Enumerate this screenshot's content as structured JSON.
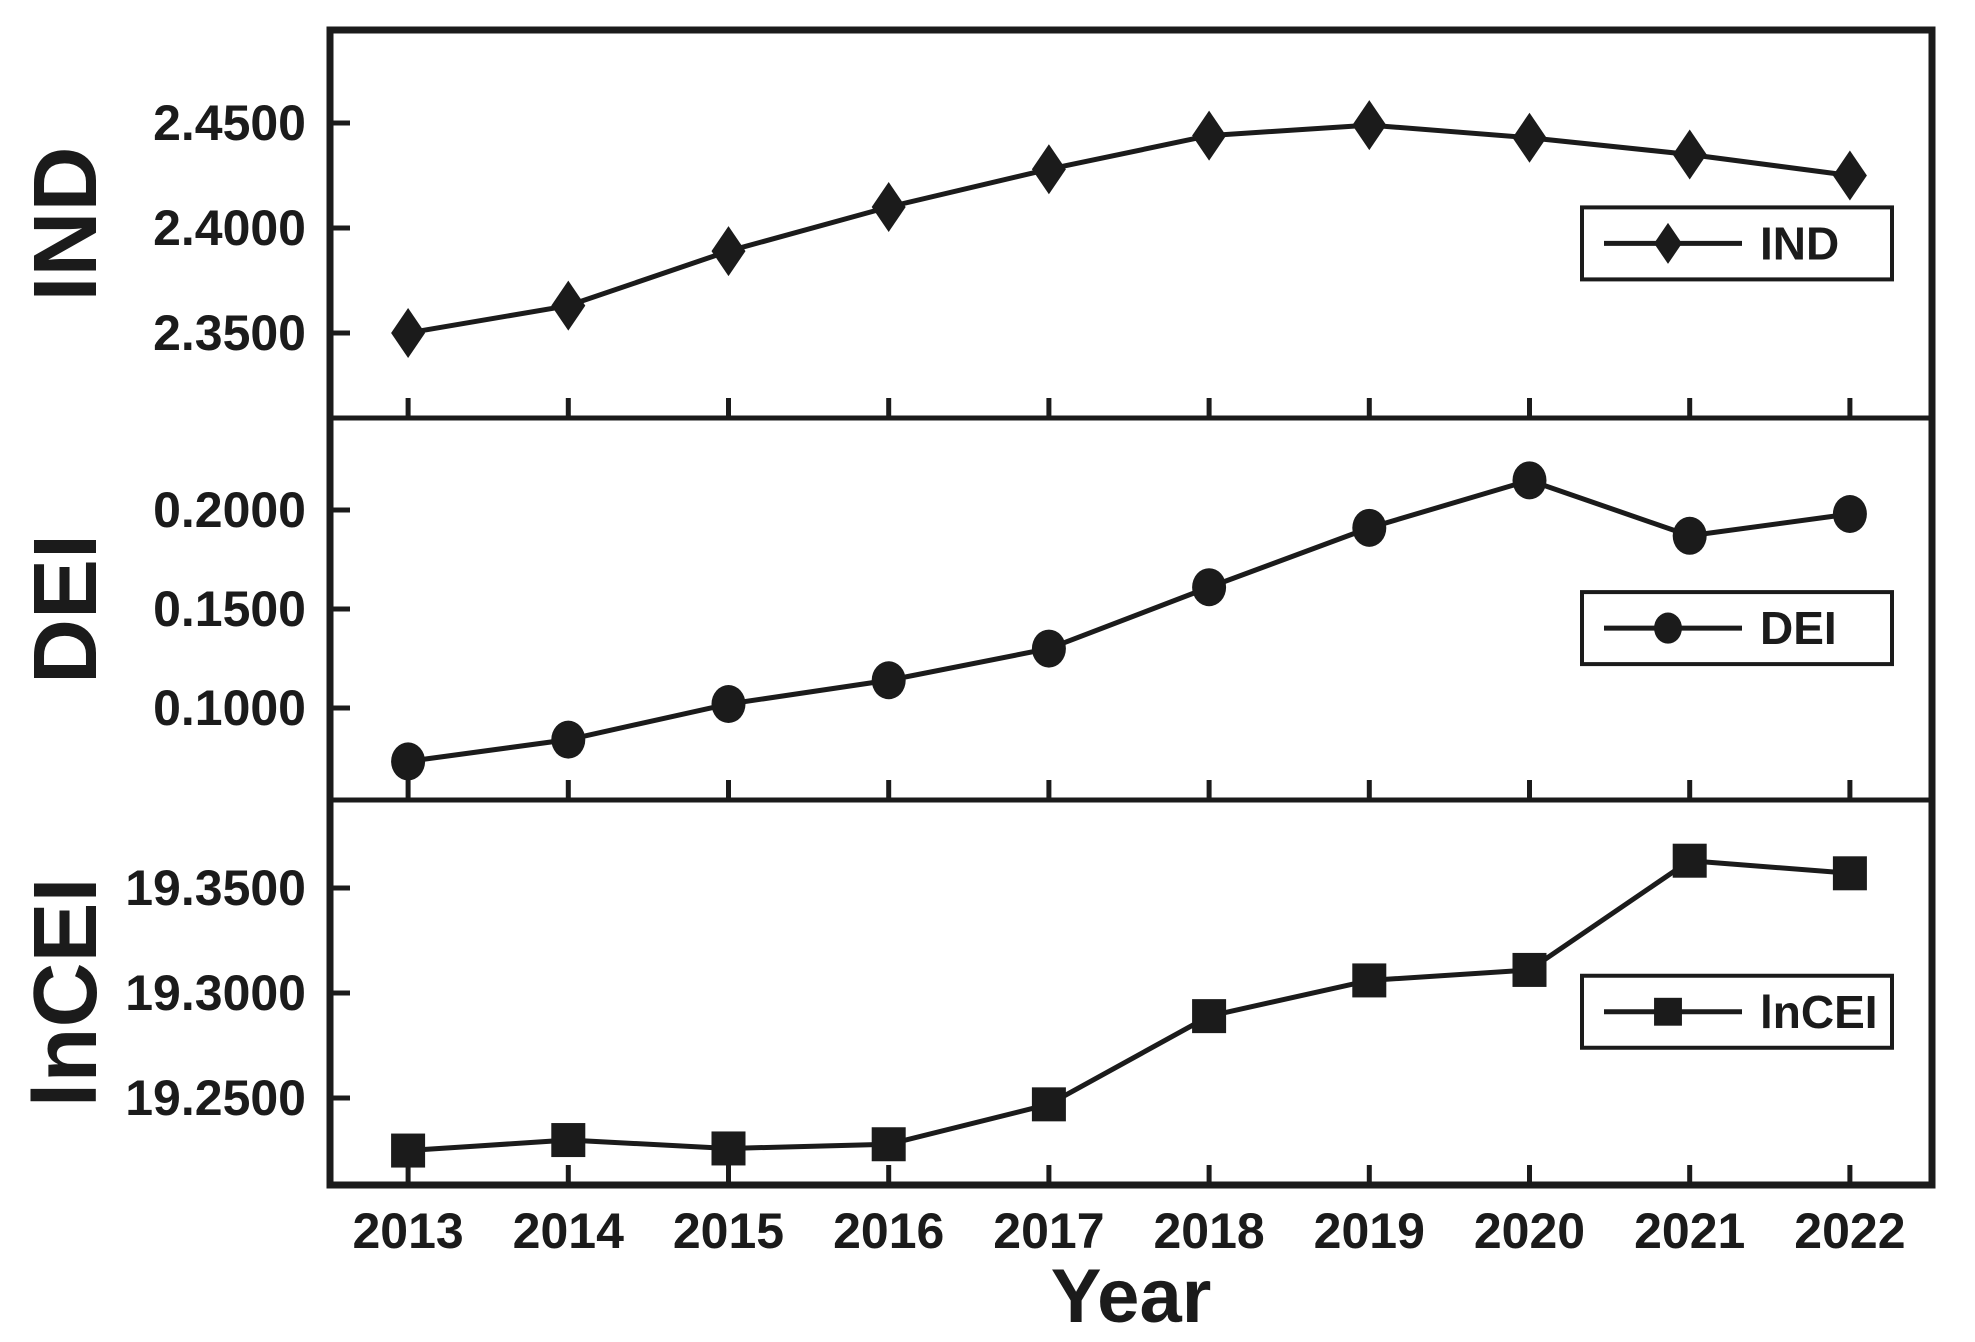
{
  "figure": {
    "background": "#ffffff",
    "ink_color": "#1b1b1b",
    "x_axis_title": "Year",
    "x_tick_labels": [
      "2013",
      "2014",
      "2015",
      "2016",
      "2017",
      "2018",
      "2019",
      "2020",
      "2021",
      "2022"
    ]
  },
  "chart_data": [
    {
      "type": "line",
      "title": "IND",
      "ylabel": "IND",
      "legend_label": "IND",
      "marker": "diamond",
      "grid": false,
      "legend_position": "lower right inside",
      "x": [
        2013,
        2014,
        2015,
        2016,
        2017,
        2018,
        2019,
        2020,
        2021,
        2022
      ],
      "values": [
        2.35,
        2.363,
        2.389,
        2.41,
        2.428,
        2.444,
        2.449,
        2.443,
        2.435,
        2.425
      ],
      "yticks": [
        {
          "value": 2.35,
          "label": "2.3500"
        },
        {
          "value": 2.4,
          "label": "2.4000"
        },
        {
          "value": 2.45,
          "label": "2.4500"
        }
      ],
      "ylim": [
        2.3095,
        2.4943
      ]
    },
    {
      "type": "line",
      "title": "DEI",
      "ylabel": "DEI",
      "legend_label": "DEI",
      "marker": "circle",
      "grid": false,
      "legend_position": "lower right inside",
      "x": [
        2013,
        2014,
        2015,
        2016,
        2017,
        2018,
        2019,
        2020,
        2021,
        2022
      ],
      "values": [
        0.073,
        0.084,
        0.102,
        0.114,
        0.13,
        0.161,
        0.191,
        0.215,
        0.187,
        0.198
      ],
      "yticks": [
        {
          "value": 0.1,
          "label": "0.1000"
        },
        {
          "value": 0.15,
          "label": "0.1500"
        },
        {
          "value": 0.2,
          "label": "0.2000"
        }
      ],
      "ylim": [
        0.0535,
        0.2465
      ]
    },
    {
      "type": "line",
      "title": "lnCEI",
      "ylabel": "lnCEI",
      "legend_label": "lnCEI",
      "marker": "square",
      "grid": false,
      "legend_position": "lower right inside",
      "x": [
        2013,
        2014,
        2015,
        2016,
        2017,
        2018,
        2019,
        2020,
        2021,
        2022
      ],
      "values": [
        19.225,
        19.23,
        19.226,
        19.228,
        19.247,
        19.289,
        19.306,
        19.311,
        19.363,
        19.357
      ],
      "yticks": [
        {
          "value": 19.25,
          "label": "19.2500"
        },
        {
          "value": 19.3,
          "label": "19.3000"
        },
        {
          "value": 19.35,
          "label": "19.3500"
        }
      ],
      "ylim": [
        19.2086,
        19.3919
      ]
    }
  ],
  "x_axis": {
    "label": "Year",
    "xlim": [
      2012.5125,
      2022.5125
    ]
  }
}
